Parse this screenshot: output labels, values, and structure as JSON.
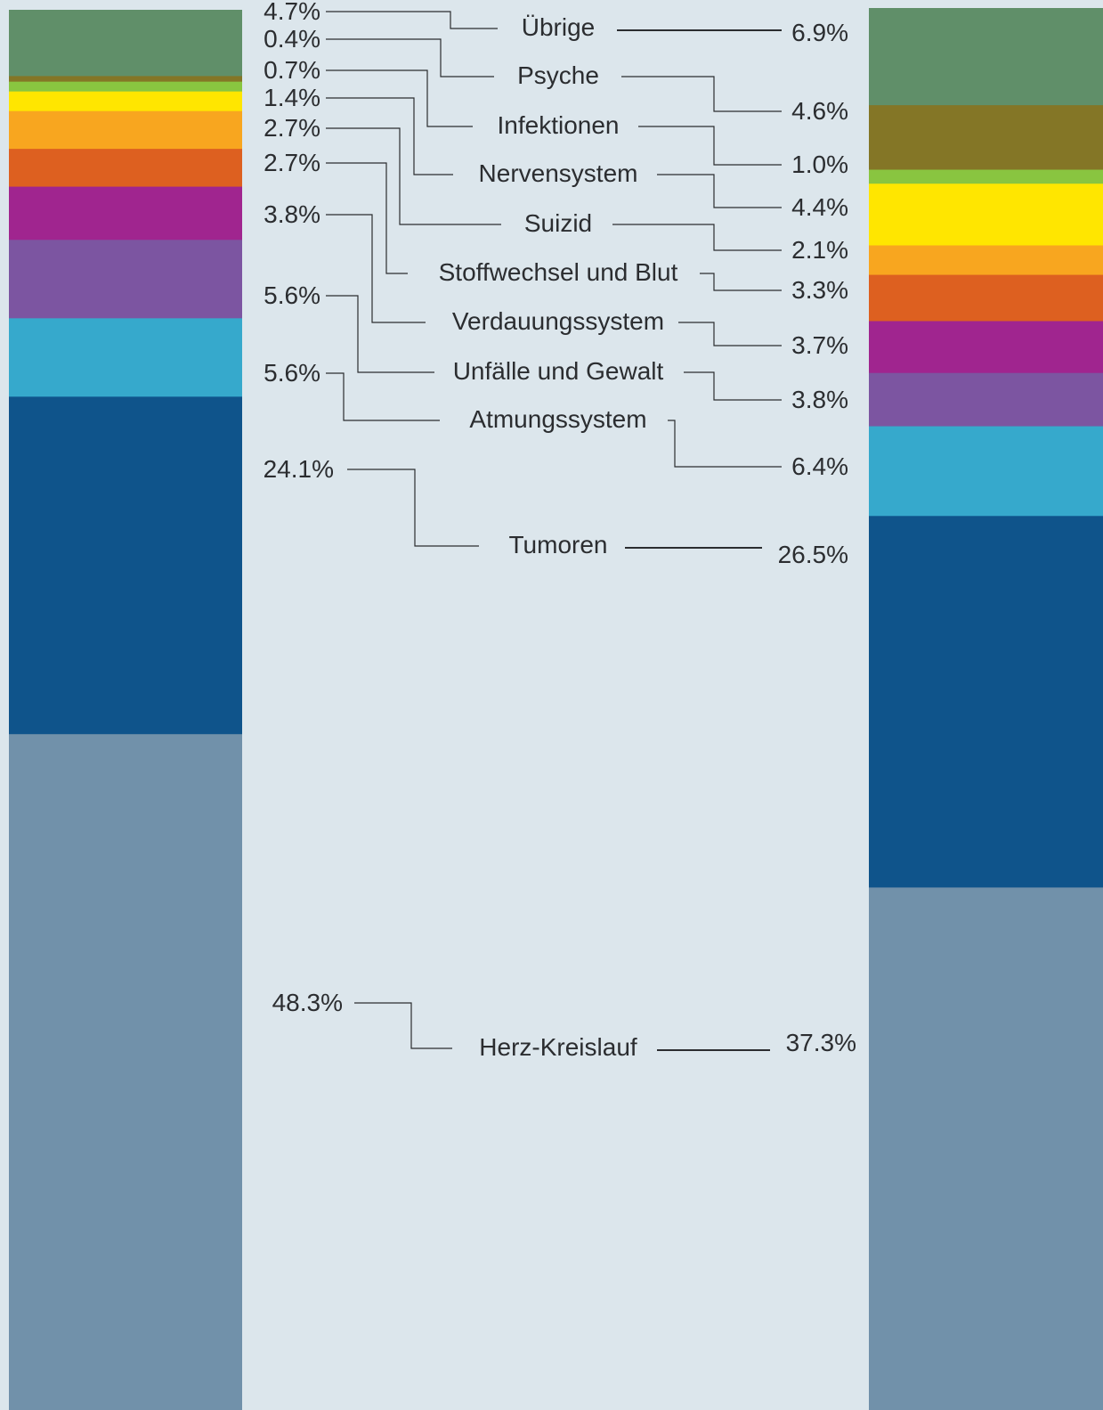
{
  "chart_data": {
    "type": "bar",
    "stacked": true,
    "legend": "none",
    "grid": false,
    "ylim": [
      0,
      100
    ],
    "unit": "%",
    "background_color": "#dce6ec",
    "categories": [
      {
        "name": "Herz-Kreislauf",
        "left": 48.3,
        "right": 37.3,
        "color": "#7191aa"
      },
      {
        "name": "Tumoren",
        "left": 24.1,
        "right": 26.5,
        "color": "#0f548b"
      },
      {
        "name": "Atmungssystem",
        "left": 5.6,
        "right": 6.4,
        "color": "#36a9cc"
      },
      {
        "name": "Unfälle und Gewalt",
        "left": 5.6,
        "right": 3.8,
        "color": "#7c55a1"
      },
      {
        "name": "Verdauungssystem",
        "left": 3.8,
        "right": 3.7,
        "color": "#a0258f"
      },
      {
        "name": "Stoffwechsel und Blut",
        "left": 2.7,
        "right": 3.3,
        "color": "#dd6020"
      },
      {
        "name": "Suizid",
        "left": 2.7,
        "right": 2.1,
        "color": "#f8a61f"
      },
      {
        "name": "Nervensystem",
        "left": 1.4,
        "right": 4.4,
        "color": "#ffe600"
      },
      {
        "name": "Infektionen",
        "left": 0.7,
        "right": 1.0,
        "color": "#89c540"
      },
      {
        "name": "Psyche",
        "left": 0.4,
        "right": 4.6,
        "color": "#847626"
      },
      {
        "name": "Übrige",
        "left": 4.7,
        "right": 6.9,
        "color": "#608f69"
      }
    ]
  }
}
